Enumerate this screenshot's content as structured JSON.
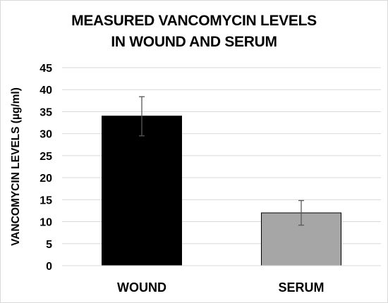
{
  "chart_data": {
    "type": "bar",
    "title_lines": [
      "MEASURED VANCOMYCIN LEVELS",
      "IN WOUND AND SERUM"
    ],
    "ylabel": "VANCOMYCIN LEVELS (µg/ml)",
    "categories": [
      "WOUND",
      "SERUM"
    ],
    "values": [
      34,
      12
    ],
    "error_low": [
      29.5,
      9.2
    ],
    "error_high": [
      38.4,
      14.8
    ],
    "bar_colors": [
      "#000000",
      "#a6a6a6"
    ],
    "ylim": [
      0,
      45
    ],
    "yticks": [
      0,
      5,
      10,
      15,
      20,
      25,
      30,
      35,
      40,
      45
    ],
    "grid": true,
    "legend": "none"
  }
}
